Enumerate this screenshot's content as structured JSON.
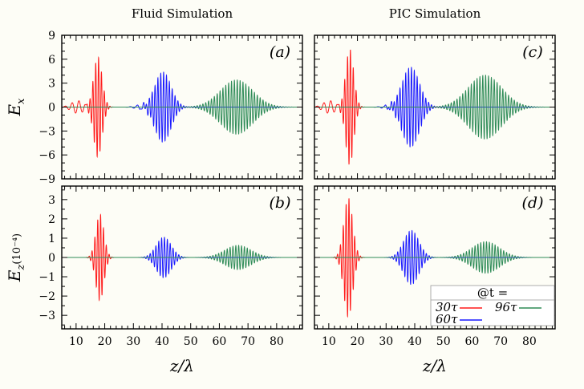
{
  "chart_data": {
    "type": "line",
    "column_titles": [
      "Fluid Simulation",
      "PIC Simulation"
    ],
    "xlabel": "z/λ",
    "xlim": [
      5,
      89
    ],
    "xticks": [
      10,
      20,
      30,
      40,
      50,
      60,
      70,
      80
    ],
    "row_axes": [
      {
        "ylabel_main": "E",
        "ylabel_sub": "x",
        "ylabel_suffix": "",
        "ylim": [
          -9,
          9
        ],
        "yticks": [
          9,
          6,
          3,
          0,
          -3,
          -6,
          -9
        ],
        "ytick_labels": [
          "9",
          "6",
          "3",
          "0",
          "−3",
          "−6",
          "−9"
        ]
      },
      {
        "ylabel_main": "E",
        "ylabel_sub": "z",
        "ylabel_suffix": "(10⁻⁴)",
        "ylim": [
          -3.7,
          3.7
        ],
        "yticks": [
          3,
          2,
          1,
          0,
          -1,
          -2,
          -3
        ],
        "ytick_labels": [
          "3",
          "2",
          "1",
          "0",
          "−1",
          "−2",
          "−3"
        ]
      }
    ],
    "panels": [
      {
        "label": "(a)",
        "row": 0,
        "col": 0,
        "series": [
          {
            "name": "30τ",
            "color": "#ff1a1a",
            "center": 17.6,
            "width": 2.1,
            "amplitude": 6.3,
            "wavelength": 1.0,
            "precursor": 0.8
          },
          {
            "name": "60τ",
            "color": "#1a1aff",
            "center": 40.3,
            "width": 4.0,
            "amplitude": 4.4,
            "wavelength": 1.0,
            "precursor": 0.35
          },
          {
            "name": "96τ",
            "color": "#2e8b57",
            "center": 66.0,
            "width": 8.0,
            "amplitude": 3.4,
            "wavelength": 1.0,
            "precursor": 0.0
          }
        ]
      },
      {
        "label": "(c)",
        "row": 0,
        "col": 1,
        "series": [
          {
            "name": "30τ",
            "color": "#ff1a1a",
            "center": 17.3,
            "width": 2.0,
            "amplitude": 7.3,
            "wavelength": 1.0,
            "precursor": 0.8
          },
          {
            "name": "60τ",
            "color": "#1a1aff",
            "center": 38.6,
            "width": 4.3,
            "amplitude": 5.0,
            "wavelength": 1.0,
            "precursor": 0.3
          },
          {
            "name": "96τ",
            "color": "#2e8b57",
            "center": 64.5,
            "width": 8.3,
            "amplitude": 4.0,
            "wavelength": 1.0,
            "precursor": 0.0
          }
        ]
      },
      {
        "label": "(b)",
        "row": 1,
        "col": 0,
        "series": [
          {
            "name": "30τ",
            "color": "#ff1a1a",
            "center": 18.3,
            "width": 2.0,
            "amplitude": 2.25,
            "wavelength": 1.0,
            "precursor": 0.0
          },
          {
            "name": "60τ",
            "color": "#1a1aff",
            "center": 40.6,
            "width": 3.7,
            "amplitude": 1.05,
            "wavelength": 1.0,
            "precursor": 0.0
          },
          {
            "name": "96τ",
            "color": "#2e8b57",
            "center": 66.5,
            "width": 6.5,
            "amplitude": 0.63,
            "wavelength": 1.0,
            "precursor": 0.0
          }
        ]
      },
      {
        "label": "(d)",
        "row": 1,
        "col": 1,
        "series": [
          {
            "name": "30τ",
            "color": "#ff1a1a",
            "center": 16.8,
            "width": 2.2,
            "amplitude": 3.1,
            "wavelength": 1.0,
            "precursor": 0.0
          },
          {
            "name": "60τ",
            "color": "#1a1aff",
            "center": 38.8,
            "width": 3.8,
            "amplitude": 1.4,
            "wavelength": 1.0,
            "precursor": 0.0
          },
          {
            "name": "96τ",
            "color": "#2e8b57",
            "center": 64.8,
            "width": 6.8,
            "amplitude": 0.82,
            "wavelength": 1.0,
            "precursor": 0.0
          }
        ]
      }
    ],
    "legend": {
      "title": "@t =",
      "location": "lower-right of panel (d)",
      "entries": [
        {
          "label": "30τ",
          "color": "#ff1a1a"
        },
        {
          "label": "96τ",
          "color": "#2e8b57"
        },
        {
          "label": "60τ",
          "color": "#1a1aff"
        }
      ]
    }
  }
}
